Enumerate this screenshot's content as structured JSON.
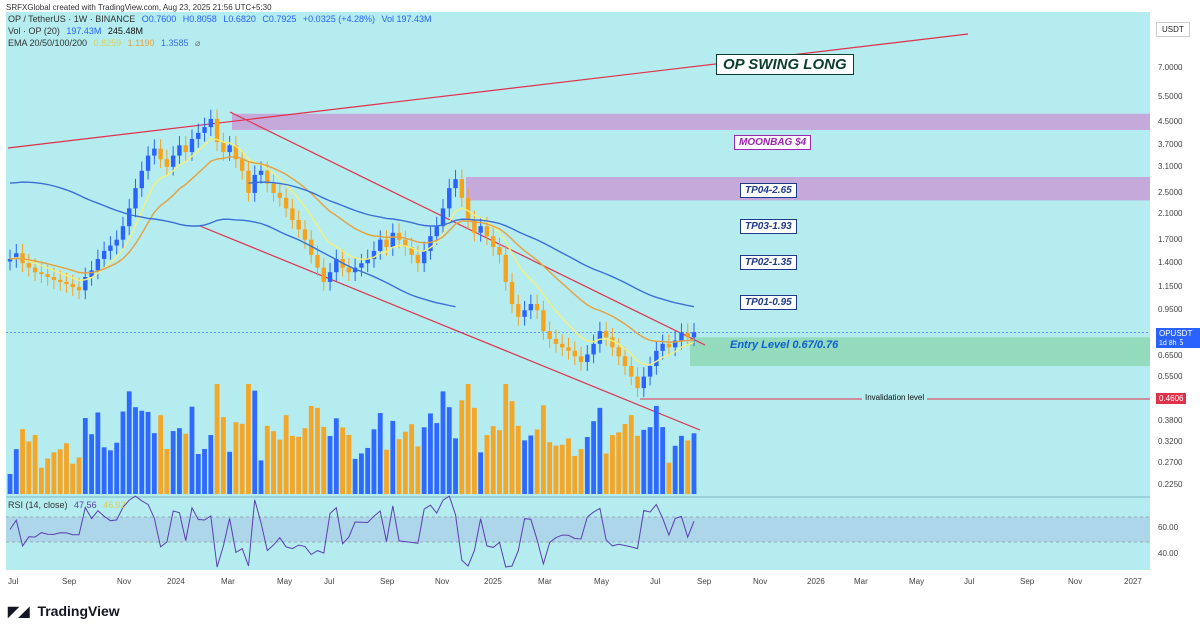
{
  "creator_line": "SRFXGlobal created with TradingView.com, Aug 23, 2025 21:56 UTC+5:30",
  "header": {
    "symbol": "OP / TetherUS · 1W · BINANCE",
    "open": "O0.7600",
    "high": "H0.8058",
    "low": "L0.6820",
    "close": "C0.7925",
    "change": "+0.0325 (+4.28%)",
    "vol": "Vol 197.43M",
    "vol_line_label": "Vol · OP (20)",
    "vol_line_v1": "197.43M",
    "vol_line_v2": "245.48M",
    "ema_label": "EMA 20/50/100/200",
    "ema_v1": "0.8259",
    "ema_v2": "1.1190",
    "ema_v3": "1.3585",
    "ema_v4": "⌀",
    "rsi_label": "RSI (14, close)",
    "rsi_v1": "47.56",
    "rsi_v2": "46.92"
  },
  "currency_badge": "USDT",
  "footer_brand": "TradingView",
  "colors": {
    "background": "#b4ecef",
    "bull": "#2962ff",
    "bear": "#f7a21b",
    "channel": "#e0314b",
    "zone": "#c8a2d8",
    "entry_zone": "#8fd9b6",
    "rsi_band": "#a8c8e8",
    "ema_fast": "#f4f07a",
    "ema_mid": "#e6a03c",
    "ema_slow": "#3b6fd6"
  },
  "chart_data": {
    "type": "candlestick",
    "timeframe": "1W",
    "scale": "log",
    "y_ticks": [
      "7.0000",
      "5.5000",
      "4.5000",
      "3.7000",
      "3.1000",
      "2.5000",
      "2.1000",
      "1.7000",
      "1.4000",
      "1.1500",
      "0.9500",
      "0.6500",
      "0.5500",
      "0.3800",
      "0.3200",
      "0.2700",
      "0.2250"
    ],
    "x_ticks": [
      "Jul",
      "Sep",
      "Nov",
      "2024",
      "Mar",
      "May",
      "Jul",
      "Sep",
      "Nov",
      "2025",
      "Mar",
      "May",
      "Jul",
      "Sep",
      "Nov",
      "2026",
      "Mar",
      "May",
      "Jul",
      "Sep",
      "Nov",
      "2027"
    ],
    "rsi_ticks": [
      "60.00",
      "40.00"
    ],
    "last_price": "0.7925",
    "last_price_label": "OPUSDT",
    "countdown": "1d 8h",
    "invalidation_price": "0.4606",
    "annotations": {
      "title": "OP SWING LONG",
      "moonbag": "MOONBAG $4",
      "tp4": "TP04-2.65",
      "tp3": "TP03-1.93",
      "tp2": "TP02-1.35",
      "tp1": "TP01-0.95",
      "entry": "Entry Level 0.67/0.76",
      "invalidation": "Invalidation level"
    },
    "closes": [
      1.45,
      1.52,
      1.4,
      1.35,
      1.3,
      1.28,
      1.25,
      1.22,
      1.2,
      1.18,
      1.15,
      1.12,
      1.25,
      1.32,
      1.45,
      1.55,
      1.62,
      1.7,
      1.9,
      2.2,
      2.6,
      3.0,
      3.4,
      3.6,
      3.3,
      3.1,
      3.4,
      3.7,
      3.5,
      3.9,
      4.1,
      4.3,
      4.6,
      3.8,
      3.5,
      3.7,
      3.3,
      3.0,
      2.5,
      2.9,
      3.0,
      2.7,
      2.5,
      2.4,
      2.2,
      2.0,
      1.85,
      1.7,
      1.5,
      1.35,
      1.2,
      1.3,
      1.45,
      1.35,
      1.3,
      1.35,
      1.4,
      1.45,
      1.55,
      1.7,
      1.6,
      1.8,
      1.7,
      1.6,
      1.5,
      1.4,
      1.55,
      1.75,
      1.9,
      2.2,
      2.6,
      2.8,
      2.4,
      2.0,
      1.8,
      1.9,
      1.75,
      1.6,
      1.5,
      1.2,
      1.0,
      0.9,
      0.95,
      1.0,
      0.95,
      0.8,
      0.75,
      0.72,
      0.7,
      0.68,
      0.65,
      0.62,
      0.66,
      0.72,
      0.8,
      0.76,
      0.7,
      0.65,
      0.6,
      0.55,
      0.5,
      0.55,
      0.6,
      0.68,
      0.72,
      0.7,
      0.74,
      0.79,
      0.76,
      0.7925
    ]
  }
}
